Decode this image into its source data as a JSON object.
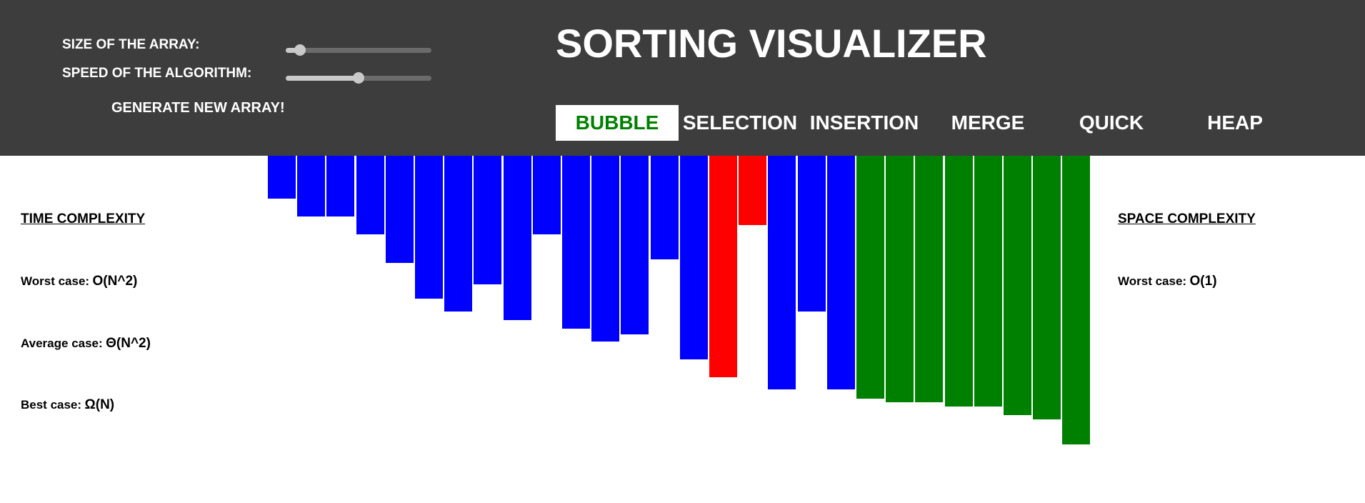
{
  "controls": {
    "size_label": "SIZE OF THE ARRAY:",
    "size_value": 0.1,
    "speed_label": "SPEED OF THE ALGORITHM:",
    "speed_value": 0.5,
    "generate_label": "GENERATE NEW ARRAY!"
  },
  "title": "SORTING VISUALIZER",
  "algorithms": [
    "BUBBLE",
    "SELECTION",
    "INSERTION",
    "MERGE",
    "QUICK",
    "HEAP"
  ],
  "active_algorithm": "BUBBLE",
  "time_complexity": {
    "heading": "TIME COMPLEXITY",
    "worst_label": "Worst case:",
    "worst_value": "O(N^2)",
    "average_label": "Average case:",
    "average_value": "Θ(N^2)",
    "best_label": "Best case:",
    "best_value": "Ω(N)"
  },
  "space_complexity": {
    "heading": "SPACE COMPLEXITY",
    "worst_label": "Worst case:",
    "worst_value": "O(1)"
  },
  "colors": {
    "header_bg": "#3d3d3d",
    "unsorted": "#0000ff",
    "comparing": "#ff0000",
    "sorted": "#008000",
    "active_tab_text": "#008000"
  },
  "array": {
    "values": [
      60,
      85,
      85,
      110,
      150,
      200,
      218,
      180,
      230,
      110,
      242,
      260,
      250,
      145,
      285,
      310,
      97,
      327,
      218,
      327,
      340,
      345,
      345,
      351,
      351,
      363,
      369,
      404
    ],
    "states": [
      "unsorted",
      "unsorted",
      "unsorted",
      "unsorted",
      "unsorted",
      "unsorted",
      "unsorted",
      "unsorted",
      "unsorted",
      "unsorted",
      "unsorted",
      "unsorted",
      "unsorted",
      "unsorted",
      "unsorted",
      "comparing",
      "comparing",
      "unsorted",
      "unsorted",
      "unsorted",
      "sorted",
      "sorted",
      "sorted",
      "sorted",
      "sorted",
      "sorted",
      "sorted",
      "sorted"
    ]
  }
}
